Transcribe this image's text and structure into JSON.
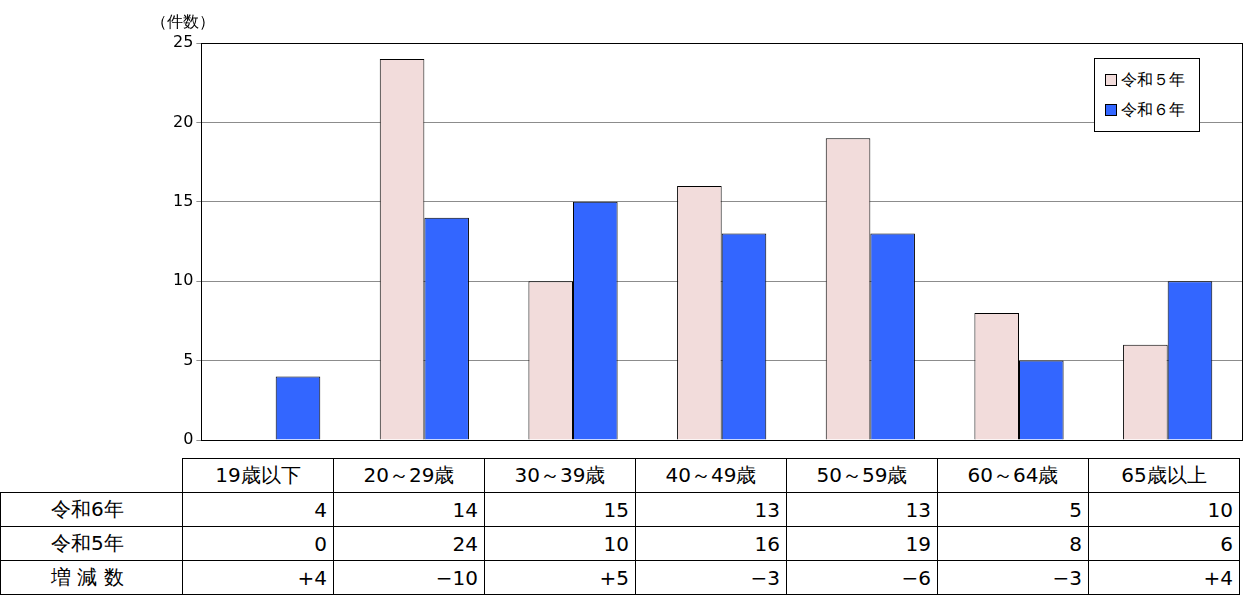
{
  "chart_data": {
    "type": "bar",
    "y_label": "（件数）",
    "categories": [
      "19歳以下",
      "20～29歳",
      "30～39歳",
      "40～49歳",
      "50～59歳",
      "60～64歳",
      "65歳以上"
    ],
    "series": [
      {
        "name": "令和５年",
        "color": "#f2dcdb",
        "values": [
          0,
          24,
          10,
          16,
          19,
          8,
          6
        ]
      },
      {
        "name": "令和６年",
        "color": "#3366ff",
        "values": [
          4,
          14,
          15,
          13,
          13,
          5,
          10
        ]
      }
    ],
    "ylim": [
      0,
      25
    ],
    "yticks": [
      0,
      5,
      10,
      15,
      20,
      25
    ],
    "grid": true,
    "legend": "upper right",
    "tick_labels": "y"
  },
  "table": {
    "rows": [
      {
        "label": "令和6年",
        "values": [
          4,
          14,
          15,
          13,
          13,
          5,
          10
        ]
      },
      {
        "label": "令和5年",
        "values": [
          0,
          24,
          10,
          16,
          19,
          8,
          6
        ]
      },
      {
        "label": "増 減 数",
        "values": [
          4,
          -10,
          5,
          -3,
          -6,
          -3,
          4
        ],
        "value_labels": [
          "+4",
          "−10",
          "+5",
          "−3",
          "−6",
          "−3",
          "+4"
        ]
      }
    ]
  }
}
